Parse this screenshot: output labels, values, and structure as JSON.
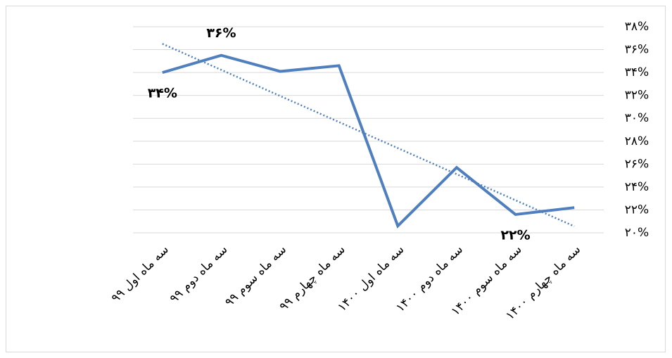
{
  "chart_data": {
    "type": "line",
    "categories": [
      "سه ماه اول ۹۹",
      "سه ماه دوم ۹۹",
      "سه ماه سوم ۹۹",
      "سه ماه چهارم ۹۹",
      "سه ماه اول ۱۴۰۰",
      "سه ماه دوم ۱۴۰۰",
      "سه ماه سوم ۱۴۰۰",
      "سه ماه چهارم ۱۴۰۰"
    ],
    "series": [
      {
        "color": "#4f7fbe",
        "values": [
          34,
          35.5,
          34.1,
          34.6,
          20.6,
          25.7,
          21.6,
          22.2
        ],
        "value_labels": [
          "۳۴%",
          "۳۶%",
          null,
          null,
          null,
          null,
          "۲۲%",
          null
        ]
      }
    ],
    "trendline": true,
    "ylim": [
      20,
      38
    ],
    "yticks": [
      {
        "value": 20,
        "label": "۲۰%"
      },
      {
        "value": 22,
        "label": "۲۲%"
      },
      {
        "value": 24,
        "label": "۲۴%"
      },
      {
        "value": 26,
        "label": "۲۶%"
      },
      {
        "value": 28,
        "label": "۲۸%"
      },
      {
        "value": 30,
        "label": "۳۰%"
      },
      {
        "value": 32,
        "label": "۳۲%"
      },
      {
        "value": 34,
        "label": "۳۴%"
      },
      {
        "value": 36,
        "label": "۳۶%"
      },
      {
        "value": 38,
        "label": "۳۸%"
      }
    ],
    "grid": true
  }
}
